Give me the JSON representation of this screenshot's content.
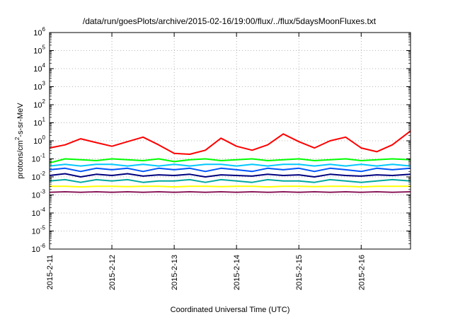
{
  "chart_data": {
    "type": "line",
    "title": "/data/run/goesPlots/archive/2015-02-16/19:00/flux/../flux/5daysMoonFluxes.txt",
    "xlabel": "Coordinated Universal Time (UTC)",
    "ylabel_parts": [
      "protons/cm",
      "2",
      "-s-sr-MeV"
    ],
    "yscale": "log",
    "ylim": [
      1e-06,
      1000000.0
    ],
    "xlim": [
      "2015-02-11T00:00",
      "2015-02-16T19:00"
    ],
    "grid": true,
    "x_ticks": [
      "2015-2-11",
      "2015-2-12",
      "2015-2-13",
      "2015-2-14",
      "2015-2-15",
      "2015-2-16"
    ],
    "y_ticks": [
      {
        "base": "10",
        "exp": "-6"
      },
      {
        "base": "10",
        "exp": "-5"
      },
      {
        "base": "10",
        "exp": "-4"
      },
      {
        "base": "10",
        "exp": "-3"
      },
      {
        "base": "10",
        "exp": "-2"
      },
      {
        "base": "10",
        "exp": "-1"
      },
      {
        "base": "10",
        "exp": "0"
      },
      {
        "base": "10",
        "exp": "1"
      },
      {
        "base": "10",
        "exp": "2"
      },
      {
        "base": "10",
        "exp": "3"
      },
      {
        "base": "10",
        "exp": "4"
      },
      {
        "base": "10",
        "exp": "5"
      },
      {
        "base": "10",
        "exp": "6"
      }
    ],
    "x": [
      "2015-02-11T00:00",
      "2015-02-11T06:00",
      "2015-02-11T12:00",
      "2015-02-11T18:00",
      "2015-02-12T00:00",
      "2015-02-12T06:00",
      "2015-02-12T12:00",
      "2015-02-12T18:00",
      "2015-02-13T00:00",
      "2015-02-13T06:00",
      "2015-02-13T12:00",
      "2015-02-13T18:00",
      "2015-02-14T00:00",
      "2015-02-14T06:00",
      "2015-02-14T12:00",
      "2015-02-14T18:00",
      "2015-02-15T00:00",
      "2015-02-15T06:00",
      "2015-02-15T12:00",
      "2015-02-15T18:00",
      "2015-02-16T00:00",
      "2015-02-16T06:00",
      "2015-02-16T12:00",
      "2015-02-16T19:00"
    ],
    "series": [
      {
        "color": "#ff0000",
        "width": 2,
        "values": [
          0.4,
          0.6,
          1.3,
          0.8,
          0.5,
          0.9,
          1.6,
          0.6,
          0.2,
          0.18,
          0.3,
          1.4,
          0.5,
          0.3,
          0.6,
          2.4,
          0.9,
          0.4,
          1.0,
          1.6,
          0.4,
          0.25,
          0.6,
          3.5
        ]
      },
      {
        "color": "#00ff00",
        "width": 2,
        "values": [
          0.06,
          0.1,
          0.09,
          0.08,
          0.1,
          0.09,
          0.08,
          0.1,
          0.07,
          0.09,
          0.1,
          0.08,
          0.09,
          0.1,
          0.08,
          0.09,
          0.1,
          0.08,
          0.09,
          0.1,
          0.08,
          0.09,
          0.1,
          0.09
        ]
      },
      {
        "color": "#00c8ff",
        "width": 2,
        "values": [
          0.04,
          0.05,
          0.04,
          0.05,
          0.05,
          0.04,
          0.05,
          0.04,
          0.05,
          0.04,
          0.05,
          0.05,
          0.04,
          0.05,
          0.04,
          0.05,
          0.05,
          0.04,
          0.05,
          0.04,
          0.05,
          0.04,
          0.05,
          0.04
        ]
      },
      {
        "color": "#0055ff",
        "width": 2,
        "values": [
          0.025,
          0.03,
          0.02,
          0.03,
          0.025,
          0.03,
          0.02,
          0.03,
          0.025,
          0.03,
          0.02,
          0.03,
          0.025,
          0.02,
          0.03,
          0.025,
          0.03,
          0.02,
          0.03,
          0.025,
          0.02,
          0.03,
          0.025,
          0.03
        ]
      },
      {
        "color": "#00007f",
        "width": 2,
        "values": [
          0.012,
          0.015,
          0.01,
          0.014,
          0.012,
          0.015,
          0.011,
          0.013,
          0.012,
          0.014,
          0.01,
          0.013,
          0.012,
          0.011,
          0.014,
          0.012,
          0.013,
          0.01,
          0.014,
          0.012,
          0.011,
          0.013,
          0.012,
          0.014
        ]
      },
      {
        "color": "#00a9a0",
        "width": 2,
        "values": [
          0.006,
          0.007,
          0.005,
          0.007,
          0.006,
          0.007,
          0.005,
          0.006,
          0.006,
          0.007,
          0.005,
          0.007,
          0.006,
          0.005,
          0.007,
          0.006,
          0.006,
          0.005,
          0.007,
          0.006,
          0.005,
          0.006,
          0.007,
          0.006
        ]
      },
      {
        "color": "#ffff00",
        "width": 2,
        "values": [
          0.003,
          0.003,
          0.0028,
          0.003,
          0.003,
          0.0029,
          0.003,
          0.003,
          0.0028,
          0.003,
          0.003,
          0.0029,
          0.003,
          0.003,
          0.0028,
          0.003,
          0.003,
          0.0029,
          0.003,
          0.003,
          0.0028,
          0.003,
          0.003,
          0.003
        ]
      },
      {
        "color": "#8b1a5a",
        "width": 2,
        "values": [
          0.0014,
          0.0015,
          0.0014,
          0.0015,
          0.0014,
          0.0015,
          0.0014,
          0.0015,
          0.0014,
          0.0015,
          0.0014,
          0.0015,
          0.0014,
          0.0015,
          0.0014,
          0.0015,
          0.0014,
          0.0015,
          0.0014,
          0.0015,
          0.0014,
          0.0015,
          0.0014,
          0.0015
        ]
      }
    ]
  }
}
